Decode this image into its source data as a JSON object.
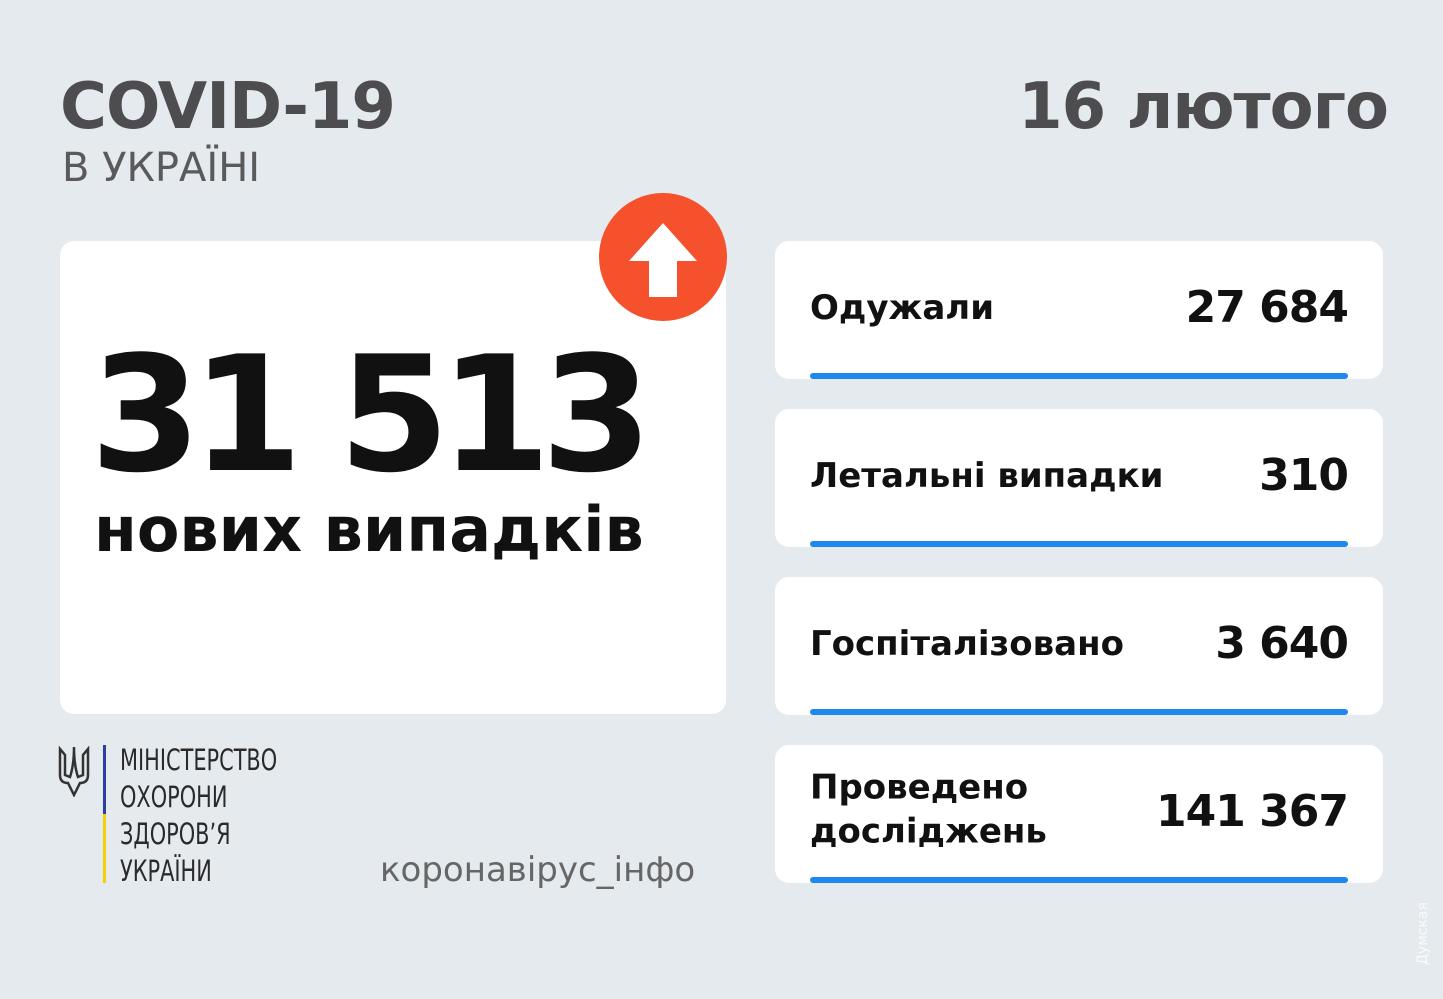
{
  "header": {
    "title": "COVID-19",
    "subtitle": "В УКРАЇНІ",
    "date": "16 лютого"
  },
  "main": {
    "value": "31 513",
    "label": "нових випадків",
    "trend_icon": "arrow-up-icon",
    "trend_color": "#f4512c"
  },
  "stats": [
    {
      "label": "Одужали",
      "value": "27 684"
    },
    {
      "label": "Летальні випадки",
      "value": "310"
    },
    {
      "label": "Госпіталізовано",
      "value": "3 640"
    },
    {
      "label": "Проведено досліджень",
      "value": "141 367"
    }
  ],
  "footer": {
    "ministry": [
      "МІНІСТЕРСТВО",
      "ОХОРОНИ",
      "ЗДОРОВ’Я",
      "УКРАЇНИ"
    ],
    "hashtag": "коронавірус_інфо",
    "watermark": "Думская"
  },
  "colors": {
    "accent_bar": "#1e88ee",
    "background": "#e5eaee"
  }
}
